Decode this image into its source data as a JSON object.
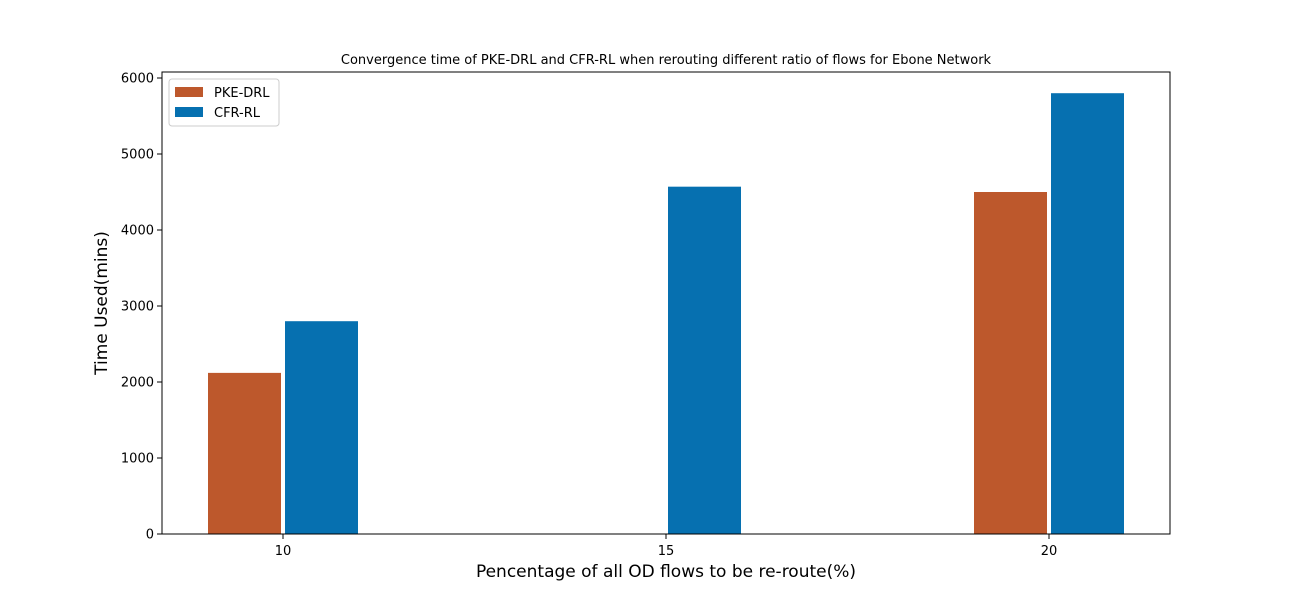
{
  "chart_data": {
    "type": "bar",
    "title": "Convergence time of PKE-DRL and CFR-RL when rerouting different ratio of flows for Ebone Network",
    "xlabel": "Pencentage of all OD flows to be re-route(%)",
    "ylabel": "Time Used(mins)",
    "categories": [
      "10",
      "15",
      "20"
    ],
    "series": [
      {
        "name": "PKE-DRL",
        "color": "#bd582c",
        "values": [
          2120,
          0,
          4500
        ]
      },
      {
        "name": "CFR-RL",
        "color": "#0670b0",
        "values": [
          2800,
          4570,
          5800
        ]
      }
    ],
    "ylim": [
      0,
      6000
    ],
    "yticks": [
      0,
      1000,
      2000,
      3000,
      4000,
      5000,
      6000
    ],
    "grid": false,
    "legend_position": "top-left"
  }
}
